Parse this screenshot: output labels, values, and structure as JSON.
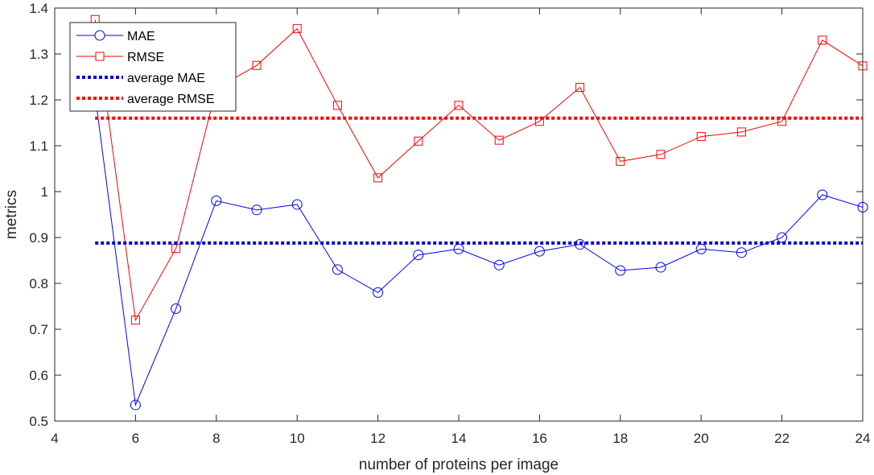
{
  "chart_data": {
    "type": "line",
    "xlabel": "number of proteins per image",
    "ylabel": "metrics",
    "xlim": [
      4,
      24
    ],
    "ylim": [
      0.5,
      1.4
    ],
    "xticks": [
      4,
      6,
      8,
      10,
      12,
      14,
      16,
      18,
      20,
      22,
      24
    ],
    "yticks": [
      0.5,
      0.6,
      0.7,
      0.8,
      0.9,
      1.0,
      1.1,
      1.2,
      1.3,
      1.4
    ],
    "ytick_labels": [
      "0.5",
      "0.6",
      "0.7",
      "0.8",
      "0.9",
      "1",
      "1.1",
      "1.2",
      "1.3",
      "1.4"
    ],
    "grid": false,
    "legend_position": "top-left",
    "x": [
      5,
      6,
      7,
      8,
      9,
      10,
      11,
      12,
      13,
      14,
      15,
      16,
      17,
      18,
      19,
      20,
      21,
      22,
      23,
      24
    ],
    "series": [
      {
        "name": "MAE",
        "color": "#0000ff",
        "marker": "circle",
        "line_style": "solid",
        "values": [
          1.21,
          0.535,
          0.745,
          0.98,
          0.96,
          0.972,
          0.83,
          0.78,
          0.862,
          0.875,
          0.84,
          0.87,
          0.885,
          0.828,
          0.835,
          0.875,
          0.867,
          0.9,
          0.993,
          0.966
        ]
      },
      {
        "name": "RMSE",
        "color": "#ff0000",
        "marker": "square",
        "line_style": "solid",
        "values": [
          1.375,
          0.72,
          0.876,
          1.225,
          1.275,
          1.355,
          1.188,
          1.03,
          1.11,
          1.188,
          1.112,
          1.153,
          1.227,
          1.066,
          1.081,
          1.12,
          1.13,
          1.153,
          1.33,
          1.274
        ]
      },
      {
        "name": "average MAE",
        "color": "#0000cc",
        "line_style": "dotted",
        "constant": 0.888,
        "x_range": [
          5,
          24
        ]
      },
      {
        "name": "average RMSE",
        "color": "#ff0000",
        "line_style": "dotted",
        "constant": 1.16,
        "x_range": [
          5,
          24
        ]
      }
    ]
  }
}
